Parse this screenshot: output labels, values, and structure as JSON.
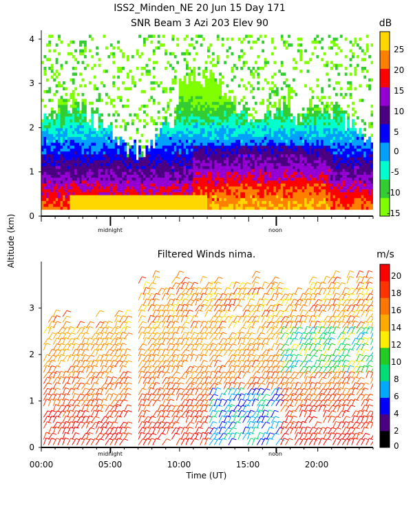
{
  "header": {
    "title_line1": "ISS2_Minden_NE  20 Jun 15 Day 171",
    "title_line2": "SNR Beam 3 Azi 203 Elev 90"
  },
  "shared": {
    "ylabel": "Altitude (km)",
    "xlabel": "Time (UT)",
    "midnight_label": "midnight",
    "noon_label": "noon"
  },
  "chart_data": [
    {
      "id": "snr",
      "type": "heatmap",
      "title": "SNR Beam 3 Azi 203 Elev 90",
      "xlabel": "Time (UT)",
      "ylabel": "Altitude (km)",
      "xlim": [
        0,
        24
      ],
      "ylim": [
        0,
        4.2
      ],
      "yticks": [
        "0",
        "1",
        "2",
        "3",
        "4"
      ],
      "colorbar": {
        "unit": "dB",
        "ticks": [
          "25",
          "20",
          "15",
          "10",
          "5",
          "0",
          "-5",
          "-10",
          "-15"
        ],
        "range": [
          -15,
          30
        ],
        "colors": [
          "#7fff00",
          "#33cc33",
          "#00ffcc",
          "#00a0ff",
          "#0000ff",
          "#4b0082",
          "#9400d3",
          "#ff0000",
          "#ff7f00",
          "#ffd700"
        ]
      },
      "day_markers": [
        {
          "label": "midnight",
          "hour": 5.0
        },
        {
          "label": "noon",
          "hour": 17.0
        }
      ]
    },
    {
      "id": "winds",
      "type": "scatter",
      "title": "Filtered Winds nima.",
      "xlabel": "Time (UT)",
      "ylabel": "Altitude (km)",
      "xlim": [
        0,
        24
      ],
      "ylim": [
        0,
        4
      ],
      "xticks": [
        "00:00",
        "05:00",
        "10:00",
        "15:00",
        "20:00"
      ],
      "yticks": [
        "0",
        "1",
        "2",
        "3"
      ],
      "colorbar": {
        "unit": "m/s",
        "ticks": [
          "20",
          "18",
          "16",
          "14",
          "12",
          "10",
          "8",
          "6",
          "4",
          "2",
          "0"
        ],
        "range": [
          0,
          22
        ],
        "colors": [
          "#000000",
          "#4b0082",
          "#0000ff",
          "#00aaff",
          "#00dd77",
          "#22cc22",
          "#ffee00",
          "#ffaa00",
          "#ff7700",
          "#ff3300",
          "#ff0000"
        ]
      },
      "day_markers": [
        {
          "label": "midnight",
          "hour": 5.0
        },
        {
          "label": "noon",
          "hour": 17.0
        }
      ]
    }
  ]
}
